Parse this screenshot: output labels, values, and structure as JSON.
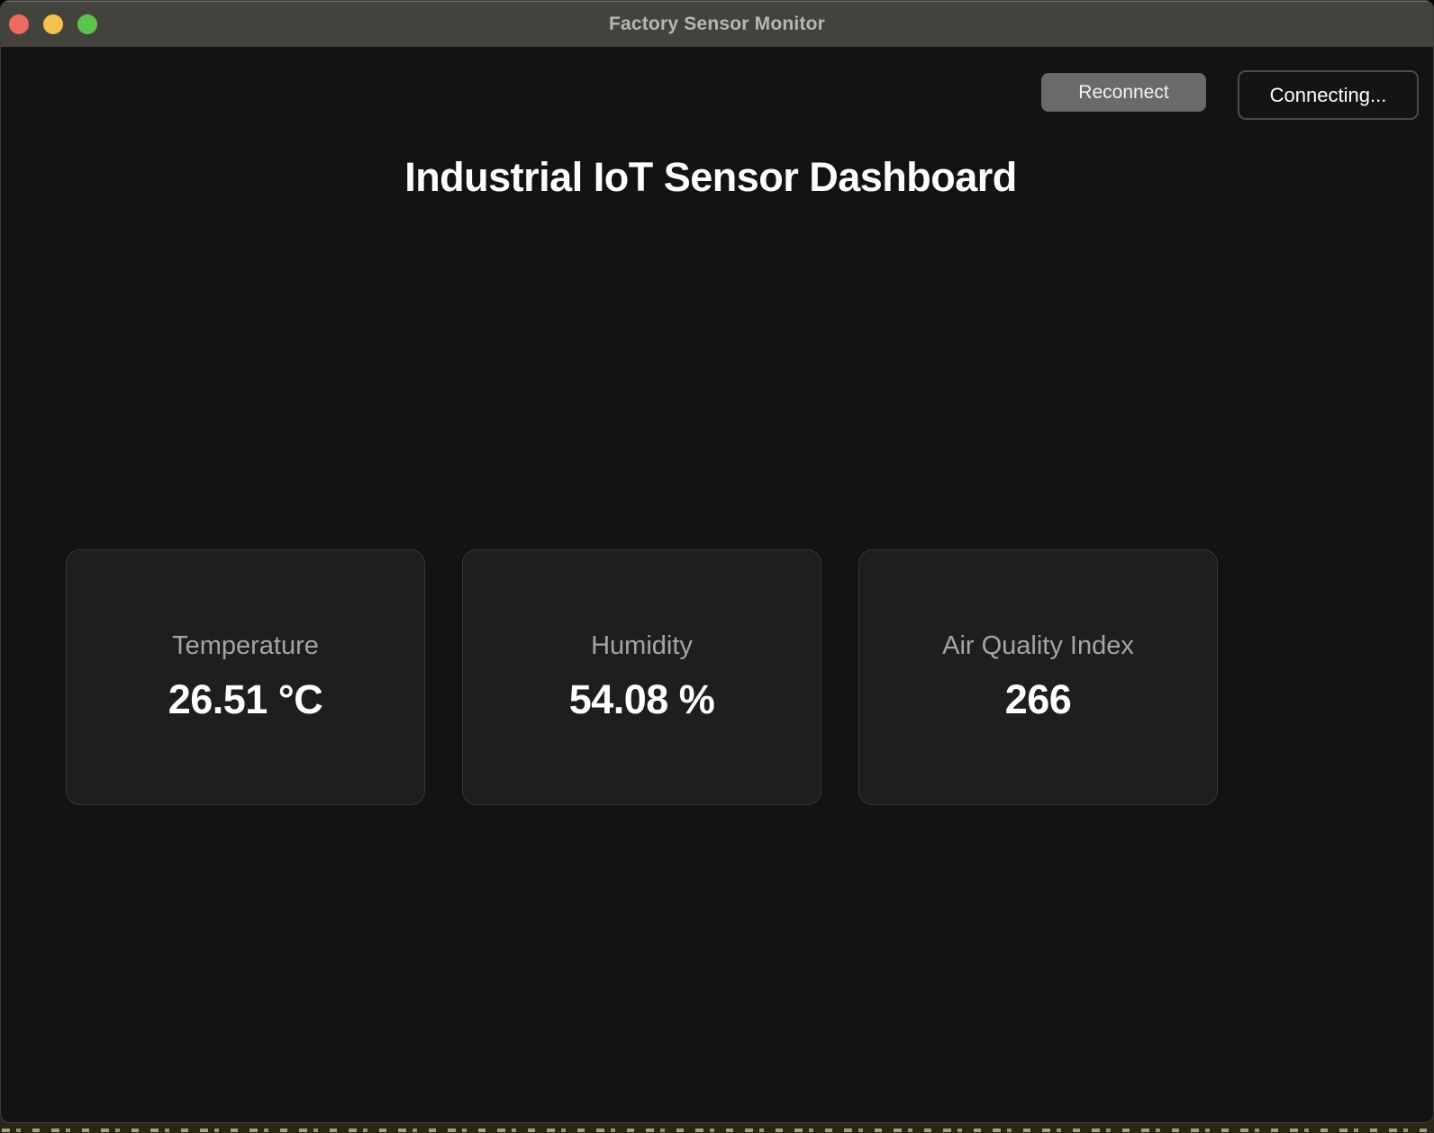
{
  "window": {
    "title": "Factory Sensor Monitor",
    "traffic_lights": [
      "close",
      "minimize",
      "zoom"
    ]
  },
  "header": {
    "reconnect_label": "Reconnect",
    "status_label": "Connecting..."
  },
  "main": {
    "title": "Industrial IoT Sensor Dashboard",
    "cards": [
      {
        "id": "temperature",
        "label": "Temperature",
        "value": "26.51 °C"
      },
      {
        "id": "humidity",
        "label": "Humidity",
        "value": "54.08 %"
      },
      {
        "id": "air-quality",
        "label": "Air Quality Index",
        "value": "266"
      }
    ]
  },
  "colors": {
    "titlebar_bg": "#44423d",
    "page_bg": "#131313",
    "card_bg": "#1e1e1e",
    "card_border": "#373737",
    "traffic_close": "#ec6a5e",
    "traffic_minimize": "#f3bf4e",
    "traffic_zoom": "#5ec34e",
    "reconnect_bg": "#6a6a6a",
    "status_border": "#4b4b4b",
    "label_text": "#a5a5a5",
    "value_text": "#ffffff"
  }
}
